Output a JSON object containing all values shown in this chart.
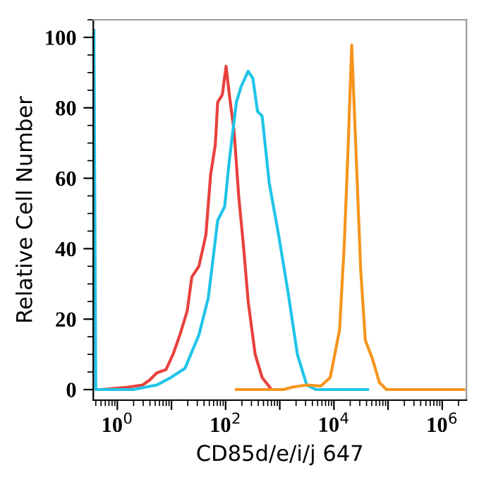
{
  "chart_data": {
    "type": "line",
    "xlabel": "CD85d/e/i/j 647",
    "ylabel": "Relative Cell Number",
    "log": "x",
    "grid": false,
    "legend": false,
    "marker": "none",
    "line_style": "solid",
    "xlim": [
      0.36,
      2800000
    ],
    "xticks": [
      {
        "value": 1,
        "label": "10$^{0}$"
      },
      {
        "value": 10,
        "label": null
      },
      {
        "value": 100,
        "label": "10$^{2}$"
      },
      {
        "value": 1000,
        "label": null
      },
      {
        "value": 10000,
        "label": "10$^{4}$"
      },
      {
        "value": 100000,
        "label": null
      },
      {
        "value": 1000000,
        "label": "10$^{6}$"
      }
    ],
    "ylim": [
      -3,
      105
    ],
    "yticks": [
      0,
      20,
      40,
      60,
      80,
      100
    ],
    "series": [
      {
        "color": "#e8413c",
        "x": [
          0.49,
          1.61,
          2.94,
          3.96,
          5.34,
          7.94,
          10.7,
          14.5,
          19.5,
          23.8,
          32.1,
          43.3,
          52.8,
          64.5,
          71.3,
          86.9,
          102,
          117,
          143,
          175,
          213,
          261,
          351,
          473,
          705,
          1161
        ],
        "values": [
          0,
          0.7,
          1.3,
          2.7,
          4.7,
          5.7,
          10,
          15.8,
          22.3,
          32,
          35,
          44,
          61,
          69.5,
          81.6,
          83.7,
          91.8,
          83.7,
          73.5,
          54.7,
          41,
          25,
          10,
          3.4,
          0,
          0
        ]
      },
      {
        "color": "#20c4e8",
        "x": [
          0.37,
          0.4,
          1.97,
          5.34,
          9.7,
          17.7,
          32.1,
          47.8,
          71.3,
          96.1,
          117,
          158,
          193,
          261,
          318,
          388,
          473,
          638,
          951,
          1419,
          2113,
          3148,
          4690,
          42000
        ],
        "values": [
          102,
          0,
          0,
          1.3,
          3.4,
          6,
          15.5,
          26,
          48,
          52,
          65,
          81.6,
          86,
          90.4,
          88.4,
          79,
          77.6,
          58.7,
          43.9,
          27.7,
          10,
          1.3,
          0,
          0
        ]
      },
      {
        "color": "#f7941d",
        "x": [
          158,
          1161,
          1730,
          3148,
          5727,
          8531,
          12700,
          15500,
          18200,
          21300,
          25500,
          31200,
          38000,
          51300,
          69200,
          93300,
          2500000
        ],
        "values": [
          0,
          0,
          0.7,
          1.3,
          1,
          3.4,
          16.9,
          41,
          68,
          97.8,
          68,
          34,
          14,
          8.8,
          2,
          0,
          0
        ]
      }
    ]
  }
}
